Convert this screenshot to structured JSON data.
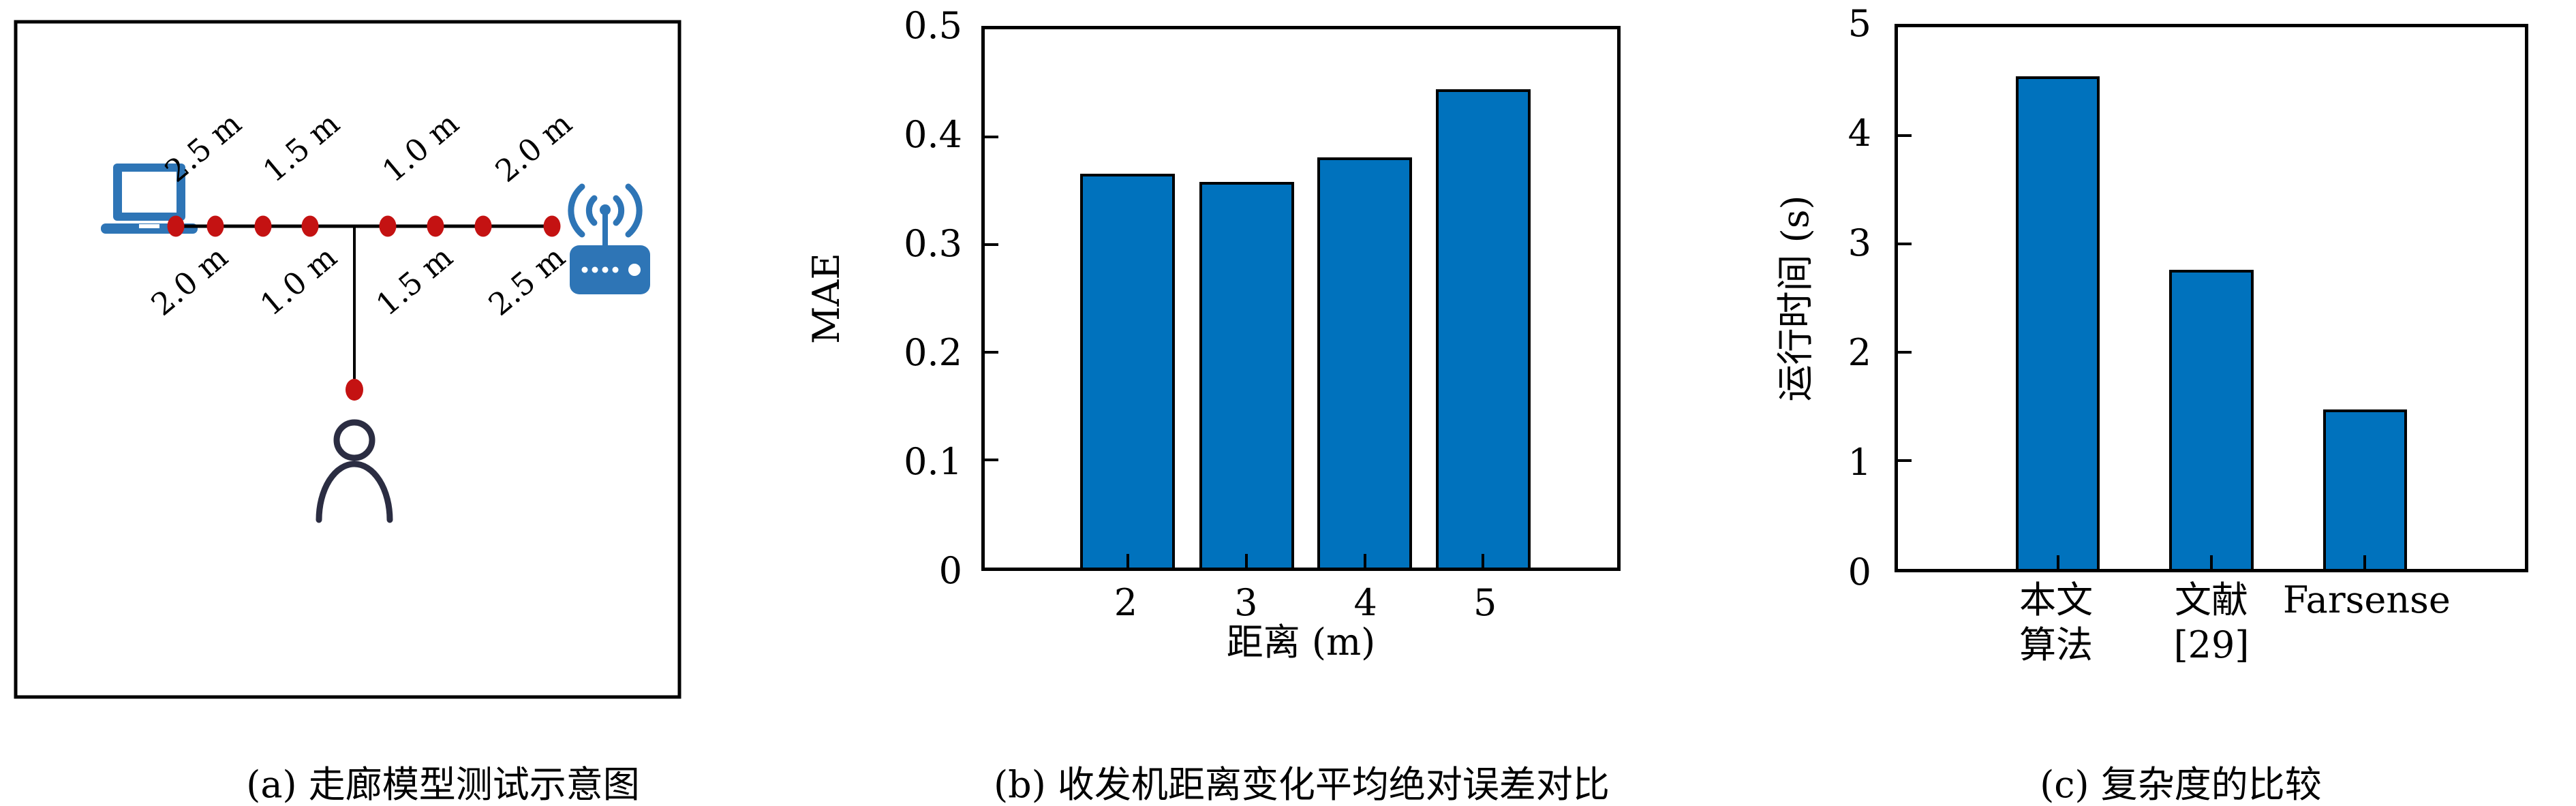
{
  "page": {
    "background": "#ffffff"
  },
  "colors": {
    "bar_blue": "#0072bd",
    "device_blue": "#2e75b6",
    "marker_red": "#c41212",
    "person_dark": "#2b2d42",
    "axis_black": "#000000"
  },
  "figure": {
    "panel_a": {
      "caption": "(a) 走廊模型测试示意图",
      "labels_above": [
        "2.5 m",
        "1.5 m",
        "1.0 m",
        "2.0 m"
      ],
      "labels_below": [
        "2.0 m",
        "1.0 m",
        "1.5 m",
        "2.5 m"
      ],
      "icons": [
        "laptop-icon",
        "wifi-router-icon",
        "person-icon",
        "measurement-dot"
      ]
    },
    "panel_b": {
      "caption": "(b) 收发机距离变化平均绝对误差对比"
    },
    "panel_c": {
      "caption": "(c) 复杂度的比较"
    }
  },
  "chart_data": [
    {
      "type": "bar",
      "title": "",
      "xlabel": "距离 (m)",
      "ylabel": "MAE",
      "categories": [
        "2",
        "3",
        "4",
        "5"
      ],
      "values": [
        0.366,
        0.358,
        0.381,
        0.444
      ],
      "ylim": [
        0,
        0.5
      ],
      "yticks": [
        "0",
        "0.1",
        "0.2",
        "0.3",
        "0.4",
        "0.5"
      ],
      "grid": false,
      "legend": null,
      "bar_color": "#0072bd",
      "bar_centers_frac": [
        0.226,
        0.414,
        0.601,
        0.788
      ],
      "bar_width_frac": 0.15
    },
    {
      "type": "bar",
      "title": "",
      "xlabel": "",
      "ylabel": "运行时间 (s)",
      "categories": [
        [
          "本文",
          "算法"
        ],
        [
          "文献",
          "[29]"
        ],
        [
          "Farsense"
        ]
      ],
      "values": [
        4.55,
        2.76,
        1.47
      ],
      "ylim": [
        0,
        5
      ],
      "yticks": [
        "0",
        "1",
        "2",
        "3",
        "4",
        "5"
      ],
      "grid": false,
      "legend": null,
      "bar_color": "#0072bd",
      "bar_centers_frac": [
        0.255,
        0.5,
        0.745
      ],
      "bar_width_frac": 0.134
    }
  ]
}
